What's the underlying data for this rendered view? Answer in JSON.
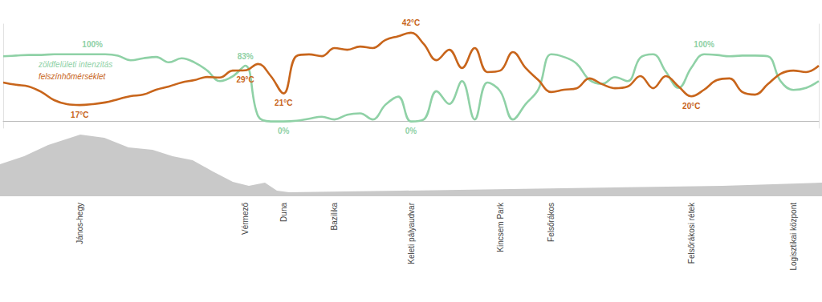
{
  "chart_data": {
    "type": "line",
    "categories": [
      null,
      null,
      null,
      null,
      null,
      null,
      "János-hegy",
      null,
      null,
      null,
      null,
      null,
      null,
      null,
      null,
      null,
      null,
      null,
      null,
      "Vérmező",
      null,
      null,
      "Duna",
      null,
      null,
      null,
      "Bazilika",
      null,
      null,
      null,
      null,
      null,
      "Keleti pályaudvar",
      null,
      null,
      null,
      null,
      null,
      null,
      "Kincsem Park",
      null,
      null,
      null,
      "Felsőrákos",
      null,
      null,
      null,
      null,
      null,
      null,
      null,
      null,
      null,
      null,
      "Felsőrákosi rétek",
      null,
      null,
      null,
      null,
      null,
      null,
      null,
      "Logisztikai központ",
      null,
      null
    ],
    "series": [
      {
        "name": "zöldfelületi intenzitás",
        "color": "#8fd1a6",
        "values": [
          97,
          98,
          99,
          99,
          100,
          100,
          100,
          100,
          100,
          98,
          91,
          94,
          96,
          88,
          94,
          88,
          76,
          60,
          67,
          83,
          8,
          0,
          0,
          1,
          4,
          7,
          3,
          10,
          12,
          3,
          25,
          37,
          0,
          3,
          45,
          26,
          60,
          3,
          58,
          45,
          3,
          26,
          48,
          100,
          96,
          86,
          62,
          56,
          66,
          60,
          95,
          100,
          74,
          50,
          80,
          100,
          99,
          97,
          98,
          98,
          97,
          60,
          47,
          50,
          60
        ],
        "value_labels": [
          null,
          null,
          null,
          null,
          null,
          null,
          null,
          "100%",
          null,
          null,
          null,
          null,
          null,
          null,
          null,
          null,
          null,
          null,
          null,
          "83%",
          null,
          null,
          "0%",
          null,
          null,
          null,
          null,
          null,
          null,
          null,
          null,
          null,
          "0%",
          null,
          null,
          null,
          null,
          null,
          null,
          null,
          null,
          null,
          null,
          null,
          null,
          null,
          null,
          null,
          null,
          null,
          null,
          null,
          null,
          null,
          null,
          "100%",
          null,
          null,
          null,
          null,
          null,
          null,
          null,
          null,
          null
        ]
      },
      {
        "name": "felszínhőmérséklet",
        "color": "#c8651b",
        "axis": "y2",
        "values": [
          24.8,
          24.0,
          23.4,
          21.5,
          18.7,
          17.3,
          17,
          17.3,
          17.9,
          19.0,
          20.1,
          20.6,
          22.3,
          23.4,
          24.8,
          25.6,
          26.7,
          26.5,
          28.9,
          29,
          31.2,
          27.0,
          21,
          33.9,
          34.5,
          33.9,
          36.7,
          36.1,
          37.2,
          36.7,
          39.5,
          40.8,
          42,
          38.1,
          32.5,
          36.1,
          29.8,
          36.7,
          28.4,
          28.9,
          35.3,
          29.8,
          25.6,
          21.5,
          22.3,
          22.8,
          26.2,
          24.2,
          22.8,
          23.4,
          27.0,
          22.8,
          27.0,
          23.4,
          20,
          22.3,
          25.6,
          26.2,
          21.5,
          20.6,
          24.2,
          27.8,
          28.9,
          28.4,
          30.6
        ],
        "value_labels": [
          null,
          null,
          null,
          null,
          null,
          null,
          "17°C",
          null,
          null,
          null,
          null,
          null,
          null,
          null,
          null,
          null,
          null,
          null,
          null,
          "29°C",
          null,
          null,
          "21°C",
          null,
          null,
          null,
          null,
          null,
          null,
          null,
          null,
          null,
          "42°C",
          null,
          null,
          null,
          null,
          null,
          null,
          null,
          null,
          null,
          null,
          null,
          null,
          null,
          null,
          null,
          null,
          null,
          null,
          null,
          null,
          null,
          "20°C",
          null,
          null,
          null,
          null,
          null,
          null,
          null,
          null,
          null,
          null
        ]
      }
    ],
    "ylim": [
      -10,
      145
    ],
    "y2lim": [
      9,
      45
    ],
    "tick_labels": "x",
    "grid": false,
    "legend": "upper left"
  }
}
